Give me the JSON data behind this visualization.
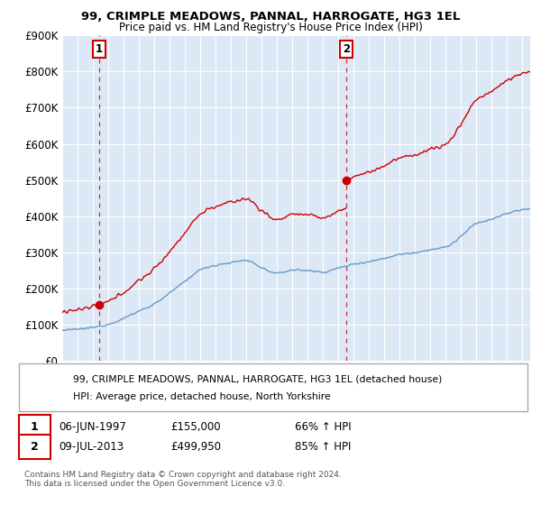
{
  "title": "99, CRIMPLE MEADOWS, PANNAL, HARROGATE, HG3 1EL",
  "subtitle": "Price paid vs. HM Land Registry's House Price Index (HPI)",
  "ylim": [
    0,
    900000
  ],
  "yticks": [
    0,
    100000,
    200000,
    300000,
    400000,
    500000,
    600000,
    700000,
    800000,
    900000
  ],
  "ytick_labels": [
    "£0",
    "£100K",
    "£200K",
    "£300K",
    "£400K",
    "£500K",
    "£600K",
    "£700K",
    "£800K",
    "£900K"
  ],
  "xlim_start": 1995.0,
  "xlim_end": 2025.5,
  "sale1_date": 1997.42,
  "sale1_price": 155000,
  "sale2_date": 2013.52,
  "sale2_price": 499950,
  "sale1_label": "1",
  "sale2_label": "2",
  "sale1_info": "06-JUN-1997",
  "sale1_amount": "£155,000",
  "sale1_hpi": "66% ↑ HPI",
  "sale2_info": "09-JUL-2013",
  "sale2_amount": "£499,950",
  "sale2_hpi": "85% ↑ HPI",
  "legend_line1": "99, CRIMPLE MEADOWS, PANNAL, HARROGATE, HG3 1EL (detached house)",
  "legend_line2": "HPI: Average price, detached house, North Yorkshire",
  "footer": "Contains HM Land Registry data © Crown copyright and database right 2024.\nThis data is licensed under the Open Government Licence v3.0.",
  "red_color": "#cc0000",
  "blue_color": "#6699cc",
  "bg_color": "#dce8f5",
  "plot_bg": "#ffffff",
  "grid_color": "#ffffff",
  "hpi_annual_values": [
    85000,
    88000,
    93000,
    102000,
    118000,
    138000,
    158000,
    188000,
    220000,
    252000,
    265000,
    272000,
    278000,
    258000,
    242000,
    252000,
    250000,
    246000,
    257000,
    268000,
    275000,
    284000,
    295000,
    300000,
    308000,
    315000,
    345000,
    380000,
    392000,
    408000,
    418000
  ]
}
